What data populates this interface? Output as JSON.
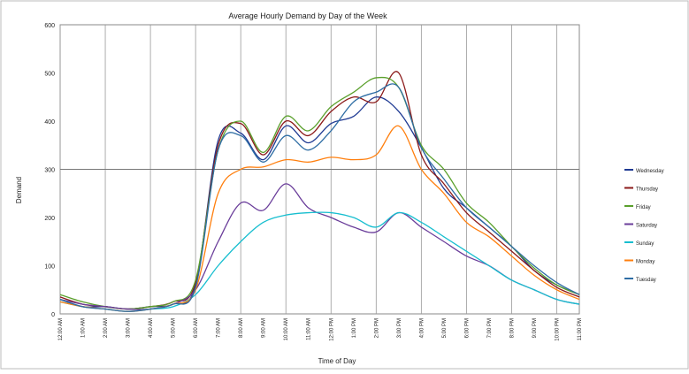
{
  "chart_data": {
    "type": "line",
    "title": "Average Hourly Demand by Day of the Week",
    "xlabel": "Time of Day",
    "ylabel": "Demand",
    "ylim": [
      0,
      600
    ],
    "yticks": [
      0,
      100,
      200,
      300,
      400,
      500,
      600
    ],
    "ytick_labels": [
      "0",
      "100",
      "200",
      "300",
      "400",
      "500",
      "600"
    ],
    "grid": true,
    "legend": "right",
    "x": [
      "12:00 AM",
      "1:00 AM",
      "2:00 AM",
      "3:00 AM",
      "4:00 AM",
      "5:00 AM",
      "6:00 AM",
      "7:00 AM",
      "8:00 AM",
      "9:00 AM",
      "10:00 AM",
      "11:00 AM",
      "12:00 PM",
      "1:00 PM",
      "2:00 PM",
      "3:00 PM",
      "4:00 PM",
      "5:00 PM",
      "6:00 PM",
      "7:00 PM",
      "8:00 PM",
      "9:00 PM",
      "10:00 PM",
      "11:00 PM"
    ],
    "series": [
      {
        "name": "Wednesday",
        "color": "#1f3a93",
        "values": [
          30,
          15,
          15,
          10,
          15,
          20,
          60,
          360,
          375,
          320,
          390,
          355,
          395,
          410,
          450,
          420,
          345,
          260,
          220,
          180,
          140,
          90,
          60,
          40
        ]
      },
      {
        "name": "Thursday",
        "color": "#8b1a1a",
        "values": [
          35,
          20,
          15,
          10,
          15,
          25,
          65,
          350,
          395,
          330,
          400,
          370,
          420,
          450,
          440,
          500,
          330,
          270,
          210,
          170,
          130,
          90,
          55,
          35
        ]
      },
      {
        "name": "Friday",
        "color": "#5aa02c",
        "values": [
          40,
          25,
          15,
          10,
          15,
          25,
          70,
          340,
          400,
          335,
          410,
          380,
          430,
          460,
          490,
          470,
          350,
          300,
          230,
          190,
          140,
          95,
          60,
          40
        ]
      },
      {
        "name": "Saturday",
        "color": "#6a3d9a",
        "values": [
          30,
          20,
          15,
          10,
          10,
          20,
          50,
          150,
          230,
          215,
          270,
          220,
          200,
          180,
          170,
          210,
          180,
          150,
          120,
          100,
          70,
          50,
          30,
          20
        ]
      },
      {
        "name": "Sunday",
        "color": "#17becf",
        "values": [
          25,
          15,
          10,
          5,
          10,
          15,
          40,
          100,
          150,
          190,
          205,
          210,
          210,
          200,
          180,
          210,
          190,
          160,
          130,
          100,
          70,
          50,
          30,
          20
        ]
      },
      {
        "name": "Monday",
        "color": "#ff7f0e",
        "values": [
          25,
          15,
          10,
          5,
          10,
          20,
          50,
          250,
          300,
          305,
          320,
          315,
          325,
          320,
          330,
          390,
          300,
          250,
          190,
          160,
          120,
          80,
          50,
          30
        ]
      },
      {
        "name": "Tuesday",
        "color": "#2e6da4",
        "values": [
          30,
          15,
          10,
          5,
          10,
          20,
          55,
          340,
          370,
          315,
          370,
          340,
          380,
          440,
          460,
          470,
          345,
          280,
          220,
          180,
          140,
          100,
          65,
          40
        ]
      }
    ]
  }
}
